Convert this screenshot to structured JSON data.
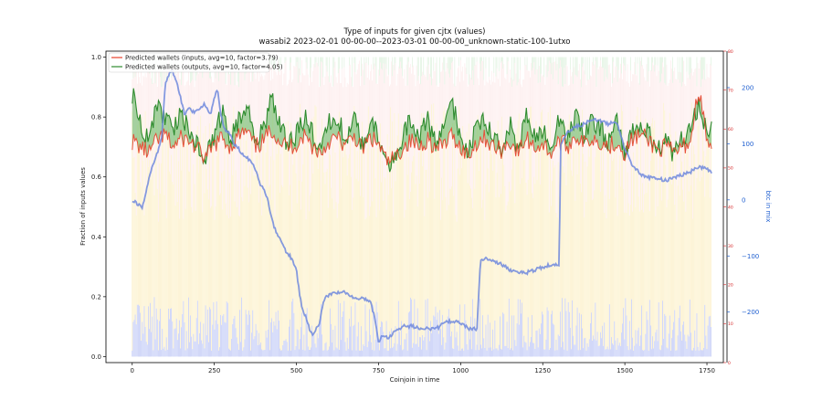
{
  "chart_data": {
    "type": "line",
    "title": "Type of inputs for given cjtx (values)",
    "subtitle": "wasabi2 2023-02-01 00-00-00--2023-03-01 00-00-00_unknown-static-100-1utxo",
    "xlabel": "Coinjoin in time",
    "ylabel": "Fraction of inputs values",
    "y2label": "btc in mix",
    "xlim": [
      -80,
      1800
    ],
    "ylim": [
      -0.02,
      1.02
    ],
    "y2lim": [
      -290,
      265
    ],
    "x_ticks": [
      "0",
      "250",
      "500",
      "750",
      "1000",
      "1250",
      "1500",
      "1750"
    ],
    "y_ticks": [
      "0.0",
      "0.2",
      "0.4",
      "0.6",
      "0.8",
      "1.0"
    ],
    "y2_ticks": [
      "−200",
      "−100",
      "0",
      "100",
      "200"
    ],
    "y3_ticks": [
      "0",
      "10",
      "20",
      "30",
      "40",
      "50",
      "60",
      "70",
      "80"
    ],
    "legend_position": "top-left",
    "grid": false,
    "colors": {
      "inputs_line": "#e8402a",
      "outputs_line": "#2e8b2e",
      "fill_between": "#3aa63a",
      "btc_line": "#6f88dd",
      "blue_bars": "#8899ee",
      "yellow_bars": "#f8dd80",
      "pink_bars": "#f6c6c6",
      "green_bars": "#bfe5bf",
      "right_axis_red": "#d62728",
      "right_axis_blue": "#1f5fd0"
    },
    "series": [
      {
        "name": "Predicted wallets (inputs, avg=10, factor=3.79)",
        "x": [
          0,
          25,
          50,
          75,
          100,
          125,
          150,
          175,
          200,
          225,
          250,
          275,
          300,
          325,
          350,
          375,
          400,
          425,
          450,
          475,
          500,
          525,
          550,
          575,
          600,
          625,
          650,
          675,
          700,
          725,
          750,
          775,
          800,
          825,
          850,
          875,
          900,
          925,
          950,
          975,
          1000,
          1025,
          1050,
          1075,
          1100,
          1125,
          1150,
          1175,
          1200,
          1225,
          1250,
          1275,
          1300,
          1325,
          1350,
          1375,
          1400,
          1425,
          1450,
          1475,
          1500,
          1525,
          1550,
          1575,
          1600,
          1625,
          1650,
          1675,
          1700,
          1725,
          1750,
          1765
        ],
        "values": [
          0.72,
          0.7,
          0.68,
          0.72,
          0.74,
          0.7,
          0.73,
          0.72,
          0.69,
          0.66,
          0.71,
          0.73,
          0.7,
          0.74,
          0.75,
          0.7,
          0.72,
          0.76,
          0.72,
          0.7,
          0.71,
          0.74,
          0.7,
          0.68,
          0.72,
          0.73,
          0.7,
          0.74,
          0.69,
          0.73,
          0.71,
          0.65,
          0.66,
          0.7,
          0.72,
          0.7,
          0.73,
          0.69,
          0.71,
          0.74,
          0.7,
          0.67,
          0.72,
          0.73,
          0.7,
          0.69,
          0.72,
          0.68,
          0.73,
          0.7,
          0.71,
          0.68,
          0.72,
          0.7,
          0.74,
          0.71,
          0.73,
          0.72,
          0.7,
          0.72,
          0.68,
          0.73,
          0.74,
          0.72,
          0.69,
          0.7,
          0.68,
          0.7,
          0.72,
          0.9,
          0.72,
          0.7
        ]
      },
      {
        "name": "Predicted wallets (outputs, avg=10, factor=4.05)",
        "x": [
          0,
          25,
          50,
          75,
          100,
          125,
          150,
          175,
          200,
          225,
          250,
          275,
          300,
          325,
          350,
          375,
          400,
          425,
          450,
          475,
          500,
          525,
          550,
          575,
          600,
          625,
          650,
          675,
          700,
          725,
          750,
          775,
          800,
          825,
          850,
          875,
          900,
          925,
          950,
          975,
          1000,
          1025,
          1050,
          1075,
          1100,
          1125,
          1150,
          1175,
          1200,
          1225,
          1250,
          1275,
          1300,
          1325,
          1350,
          1375,
          1400,
          1425,
          1450,
          1475,
          1500,
          1525,
          1550,
          1575,
          1600,
          1625,
          1650,
          1675,
          1700,
          1725,
          1750,
          1765
        ],
        "values": [
          0.88,
          0.78,
          0.72,
          0.84,
          0.8,
          0.76,
          0.82,
          0.74,
          0.7,
          0.67,
          0.74,
          0.82,
          0.72,
          0.8,
          0.84,
          0.72,
          0.76,
          0.86,
          0.78,
          0.7,
          0.74,
          0.8,
          0.74,
          0.69,
          0.78,
          0.8,
          0.72,
          0.82,
          0.7,
          0.78,
          0.74,
          0.64,
          0.66,
          0.74,
          0.8,
          0.74,
          0.79,
          0.7,
          0.76,
          0.84,
          0.74,
          0.68,
          0.78,
          0.8,
          0.72,
          0.7,
          0.78,
          0.68,
          0.8,
          0.74,
          0.76,
          0.68,
          0.8,
          0.72,
          0.8,
          0.74,
          0.8,
          0.76,
          0.72,
          0.78,
          0.68,
          0.76,
          0.78,
          0.74,
          0.69,
          0.72,
          0.67,
          0.73,
          0.76,
          0.84,
          0.74,
          0.78
        ]
      },
      {
        "name": "btc in mix",
        "axis": "right",
        "x": [
          0,
          10,
          20,
          30,
          40,
          50,
          60,
          70,
          80,
          90,
          100,
          110,
          120,
          130,
          140,
          150,
          160,
          170,
          180,
          190,
          200,
          210,
          220,
          230,
          240,
          250,
          260,
          270,
          280,
          290,
          300,
          310,
          320,
          330,
          340,
          350,
          360,
          370,
          380,
          390,
          400,
          410,
          420,
          430,
          440,
          450,
          460,
          470,
          480,
          490,
          500,
          510,
          520,
          530,
          540,
          550,
          560,
          570,
          580,
          590,
          600,
          625,
          650,
          675,
          700,
          725,
          740,
          750,
          760,
          780,
          800,
          825,
          850,
          875,
          900,
          925,
          950,
          975,
          1000,
          1025,
          1050,
          1060,
          1075,
          1100,
          1125,
          1150,
          1175,
          1200,
          1225,
          1250,
          1275,
          1300,
          1305,
          1325,
          1350,
          1375,
          1400,
          1425,
          1450,
          1475,
          1500,
          1525,
          1550,
          1575,
          1600,
          1625,
          1650,
          1675,
          1700,
          1725,
          1750,
          1765
        ],
        "values": [
          0,
          -5,
          -8,
          -14,
          5,
          35,
          55,
          75,
          90,
          110,
          205,
          222,
          230,
          220,
          200,
          175,
          150,
          165,
          160,
          155,
          160,
          165,
          170,
          160,
          155,
          185,
          195,
          150,
          130,
          120,
          115,
          100,
          95,
          85,
          80,
          75,
          70,
          60,
          45,
          25,
          20,
          5,
          -20,
          -45,
          -60,
          -70,
          -80,
          -95,
          -100,
          -110,
          -125,
          -170,
          -200,
          -210,
          -230,
          -240,
          -230,
          -220,
          -185,
          -170,
          -170,
          -165,
          -165,
          -175,
          -175,
          -180,
          -215,
          -255,
          -240,
          -245,
          -235,
          -225,
          -225,
          -228,
          -230,
          -230,
          -220,
          -215,
          -220,
          -230,
          -230,
          -110,
          -105,
          -110,
          -115,
          -125,
          -130,
          -130,
          -125,
          -120,
          -115,
          -115,
          100,
          120,
          130,
          135,
          145,
          140,
          135,
          140,
          90,
          60,
          45,
          40,
          38,
          35,
          40,
          45,
          50,
          60,
          55,
          48
        ]
      }
    ]
  }
}
